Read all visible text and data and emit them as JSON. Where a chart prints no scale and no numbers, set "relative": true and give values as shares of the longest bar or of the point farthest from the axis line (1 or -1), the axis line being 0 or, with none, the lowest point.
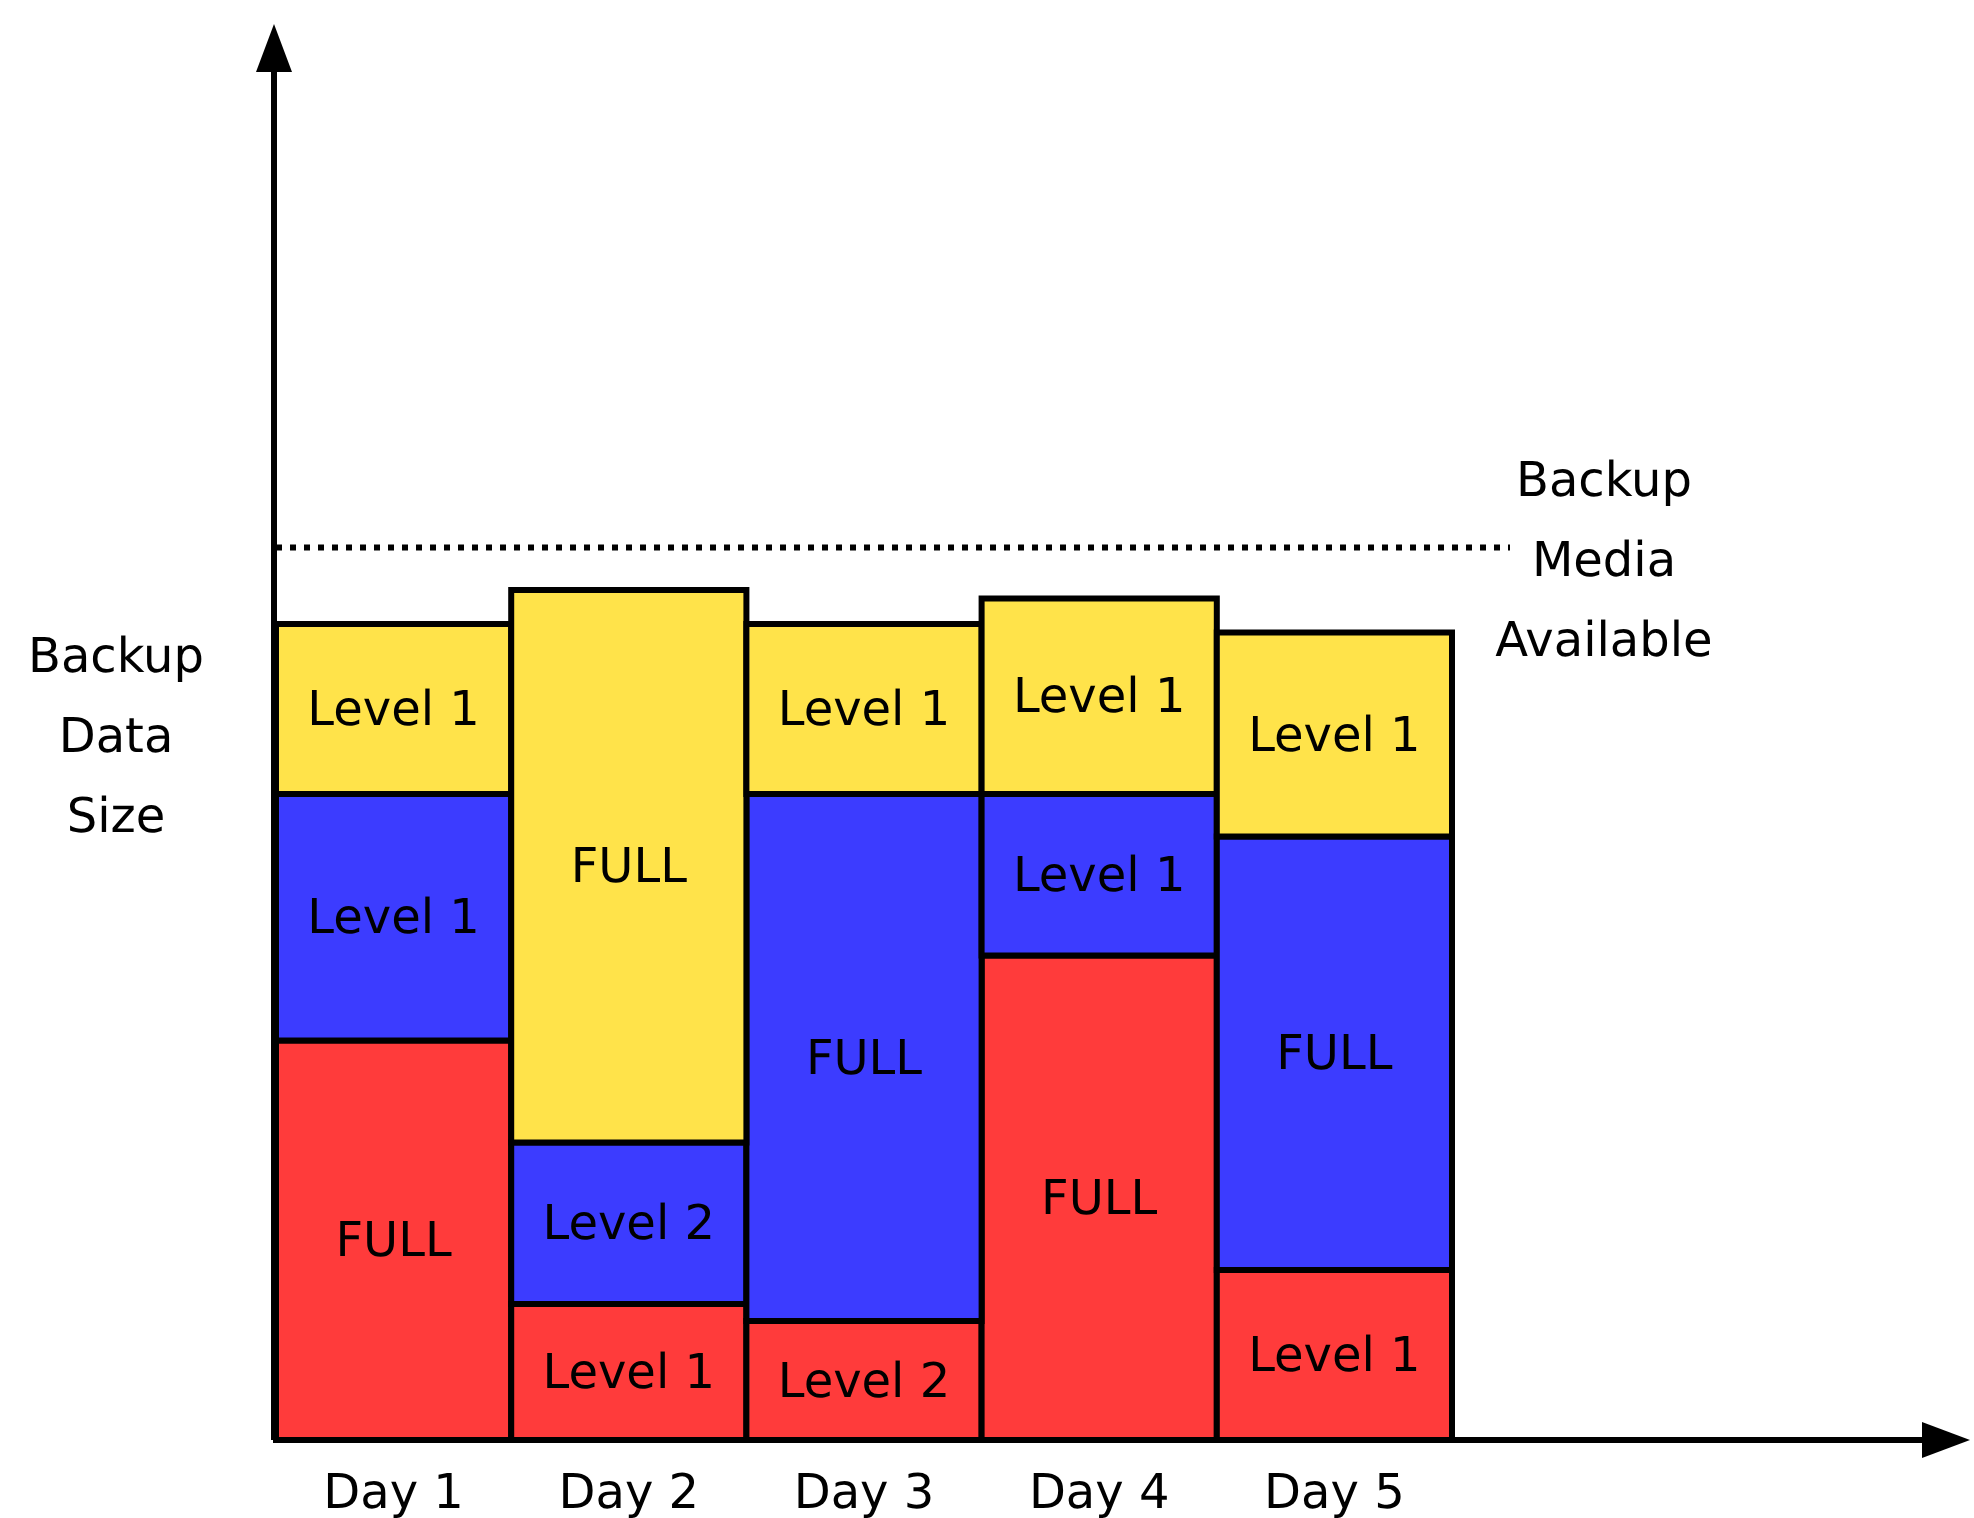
{
  "chart_data": {
    "type": "bar",
    "stacked": true,
    "relative": true,
    "ylabel": "Backup Data Size",
    "categories": [
      "Day 1",
      "Day 2",
      "Day 3",
      "Day 4",
      "Day 5"
    ],
    "series": [
      {
        "color": "#ff3b3b",
        "values": [
          0.47,
          0.16,
          0.14,
          0.57,
          0.2
        ]
      },
      {
        "color": "#3c3cff",
        "values": [
          0.29,
          0.19,
          0.62,
          0.19,
          0.51
        ]
      },
      {
        "color": "#ffe34a",
        "values": [
          0.2,
          0.65,
          0.2,
          0.23,
          0.24
        ]
      }
    ],
    "annotations": [
      "FULL",
      "Level 1",
      "Level 1",
      "Level 1",
      "Level 2",
      "FULL",
      "Level 2",
      "FULL",
      "Level 1",
      "FULL",
      "Level 1",
      "Level 1",
      "Level 1",
      "FULL",
      "Level 1"
    ],
    "ref_lines": [
      {
        "axis": "y",
        "value": 1.05,
        "label": "Backup Media Available",
        "line_style": "dotted"
      }
    ]
  }
}
